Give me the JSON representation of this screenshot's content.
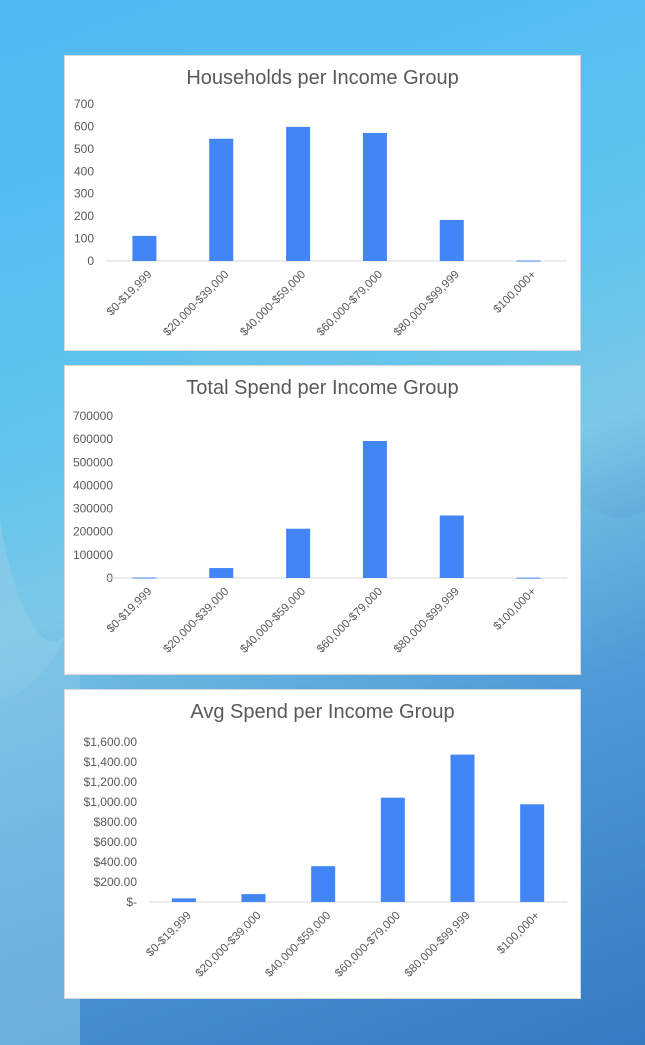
{
  "colors": {
    "bar": "#4285f4",
    "axis": "#d9d9d9",
    "text": "#595959"
  },
  "chart_data": [
    {
      "type": "bar",
      "title": "Households per Income Group",
      "categories": [
        "$0-$19,999",
        "$20,000-$39,000",
        "$40,000-$59,000",
        "$60,000-$79,000",
        "$80,000-$99,999",
        "$100,000+"
      ],
      "values": [
        112,
        545,
        598,
        571,
        183,
        2
      ],
      "ylim": [
        0,
        700
      ],
      "yticks": [
        "0",
        "100",
        "200",
        "300",
        "400",
        "500",
        "600",
        "700"
      ],
      "grid": false,
      "legend": "none"
    },
    {
      "type": "bar",
      "title": "Total Spend per Income Group",
      "categories": [
        "$0-$19,999",
        "$20,000-$39,000",
        "$40,000-$59,000",
        "$60,000-$79,000",
        "$80,000-$99,999",
        "$100,000+"
      ],
      "values": [
        2000,
        43000,
        213000,
        592000,
        270000,
        1500
      ],
      "ylim": [
        0,
        700000
      ],
      "yticks": [
        "0",
        "100000",
        "200000",
        "300000",
        "400000",
        "500000",
        "600000",
        "700000"
      ],
      "grid": false,
      "legend": "none"
    },
    {
      "type": "bar",
      "title": "Avg Spend per Income Group",
      "categories": [
        "$0-$19,999",
        "$20,000-$39,000",
        "$40,000-$59,000",
        "$60,000-$79,000",
        "$80,000-$99,999",
        "$100,000+"
      ],
      "values": [
        36,
        79,
        358,
        1043,
        1474,
        977
      ],
      "ylim": [
        0,
        1600
      ],
      "yticks": [
        "$-",
        "$200.00",
        "$400.00",
        "$600.00",
        "$800.00",
        "$1,000.00",
        "$1,200.00",
        "$1,400.00",
        "$1,600.00"
      ],
      "grid": false,
      "legend": "none"
    }
  ]
}
